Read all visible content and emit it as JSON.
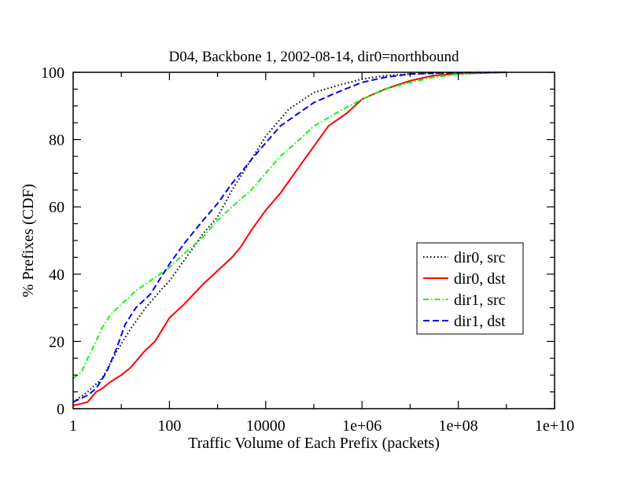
{
  "chart_data": {
    "type": "line",
    "title": "D04, Backbone 1, 2002-08-14, dir0=northbound",
    "xlabel": "Traffic Volume of Each Prefix (packets)",
    "ylabel": "% Prefixes (CDF)",
    "xscale": "log",
    "xlim": [
      1,
      10000000000
    ],
    "ylim": [
      0,
      100
    ],
    "x_ticks": [
      1,
      100,
      10000,
      1000000,
      100000000,
      10000000000
    ],
    "x_tick_labels": [
      "1",
      "100",
      "10000",
      "1e+06",
      "1e+08",
      "1e+10"
    ],
    "y_ticks": [
      0,
      20,
      40,
      60,
      80,
      100
    ],
    "y_tick_labels": [
      "0",
      "20",
      "40",
      "60",
      "80",
      "100"
    ],
    "grid": false,
    "legend_position": "right",
    "series": [
      {
        "name": "dir0, src",
        "color": "#000000",
        "dash": "dotted",
        "points": [
          [
            1,
            2
          ],
          [
            2,
            5
          ],
          [
            4,
            9
          ],
          [
            8,
            17
          ],
          [
            16,
            24
          ],
          [
            32,
            30
          ],
          [
            64,
            35
          ],
          [
            100,
            38
          ],
          [
            200,
            44
          ],
          [
            500,
            52
          ],
          [
            1000,
            57
          ],
          [
            2000,
            65
          ],
          [
            5000,
            74
          ],
          [
            10000,
            81
          ],
          [
            30000,
            89
          ],
          [
            100000,
            94
          ],
          [
            300000,
            96
          ],
          [
            1000000,
            98
          ],
          [
            3000000,
            99
          ],
          [
            10000000,
            99.5
          ],
          [
            100000000,
            99.9
          ],
          [
            1000000000,
            100
          ]
        ]
      },
      {
        "name": "dir0, dst",
        "color": "#ff0000",
        "dash": "solid",
        "points": [
          [
            1,
            1
          ],
          [
            1.5,
            1.5
          ],
          [
            2,
            2
          ],
          [
            3,
            5
          ],
          [
            4,
            6
          ],
          [
            6,
            8
          ],
          [
            10,
            10
          ],
          [
            15,
            12
          ],
          [
            20,
            14
          ],
          [
            30,
            17
          ],
          [
            50,
            20
          ],
          [
            100,
            27
          ],
          [
            200,
            31
          ],
          [
            500,
            37
          ],
          [
            1000,
            41
          ],
          [
            2000,
            45
          ],
          [
            3000,
            48
          ],
          [
            5000,
            53
          ],
          [
            10000,
            59
          ],
          [
            20000,
            64
          ],
          [
            50000,
            72
          ],
          [
            100000,
            78
          ],
          [
            200000,
            84
          ],
          [
            500000,
            88
          ],
          [
            1000000,
            92
          ],
          [
            3000000,
            95
          ],
          [
            10000000,
            97.5
          ],
          [
            30000000,
            99
          ],
          [
            100000000,
            99.6
          ],
          [
            1000000000,
            100
          ]
        ]
      },
      {
        "name": "dir1, src",
        "color": "#00ff00",
        "dash": "dash-dot",
        "points": [
          [
            1,
            9
          ],
          [
            1.5,
            11
          ],
          [
            2,
            15
          ],
          [
            3,
            20
          ],
          [
            4,
            24
          ],
          [
            6,
            28
          ],
          [
            10,
            31
          ],
          [
            20,
            35
          ],
          [
            50,
            39
          ],
          [
            100,
            42
          ],
          [
            200,
            46
          ],
          [
            500,
            51
          ],
          [
            1000,
            56
          ],
          [
            2000,
            60
          ],
          [
            5000,
            65
          ],
          [
            10000,
            70
          ],
          [
            20000,
            75
          ],
          [
            50000,
            80
          ],
          [
            100000,
            84
          ],
          [
            300000,
            88
          ],
          [
            1000000,
            92
          ],
          [
            3000000,
            95
          ],
          [
            10000000,
            97
          ],
          [
            30000000,
            98.5
          ],
          [
            100000000,
            99.5
          ],
          [
            1000000000,
            100
          ]
        ]
      },
      {
        "name": "dir1, dst",
        "color": "#0000ff",
        "dash": "dashed",
        "points": [
          [
            1,
            2
          ],
          [
            2,
            4
          ],
          [
            3,
            6
          ],
          [
            5,
            11
          ],
          [
            8,
            18
          ],
          [
            12,
            25
          ],
          [
            20,
            30
          ],
          [
            40,
            34
          ],
          [
            60,
            38
          ],
          [
            100,
            43
          ],
          [
            200,
            49
          ],
          [
            500,
            56
          ],
          [
            1000,
            61
          ],
          [
            2000,
            67
          ],
          [
            3000,
            70
          ],
          [
            5000,
            74
          ],
          [
            10000,
            79
          ],
          [
            20000,
            84
          ],
          [
            50000,
            88
          ],
          [
            100000,
            91
          ],
          [
            300000,
            94
          ],
          [
            1000000,
            97
          ],
          [
            3000000,
            98.5
          ],
          [
            10000000,
            99.5
          ],
          [
            100000000,
            99.9
          ],
          [
            1000000000,
            100
          ]
        ]
      }
    ]
  }
}
